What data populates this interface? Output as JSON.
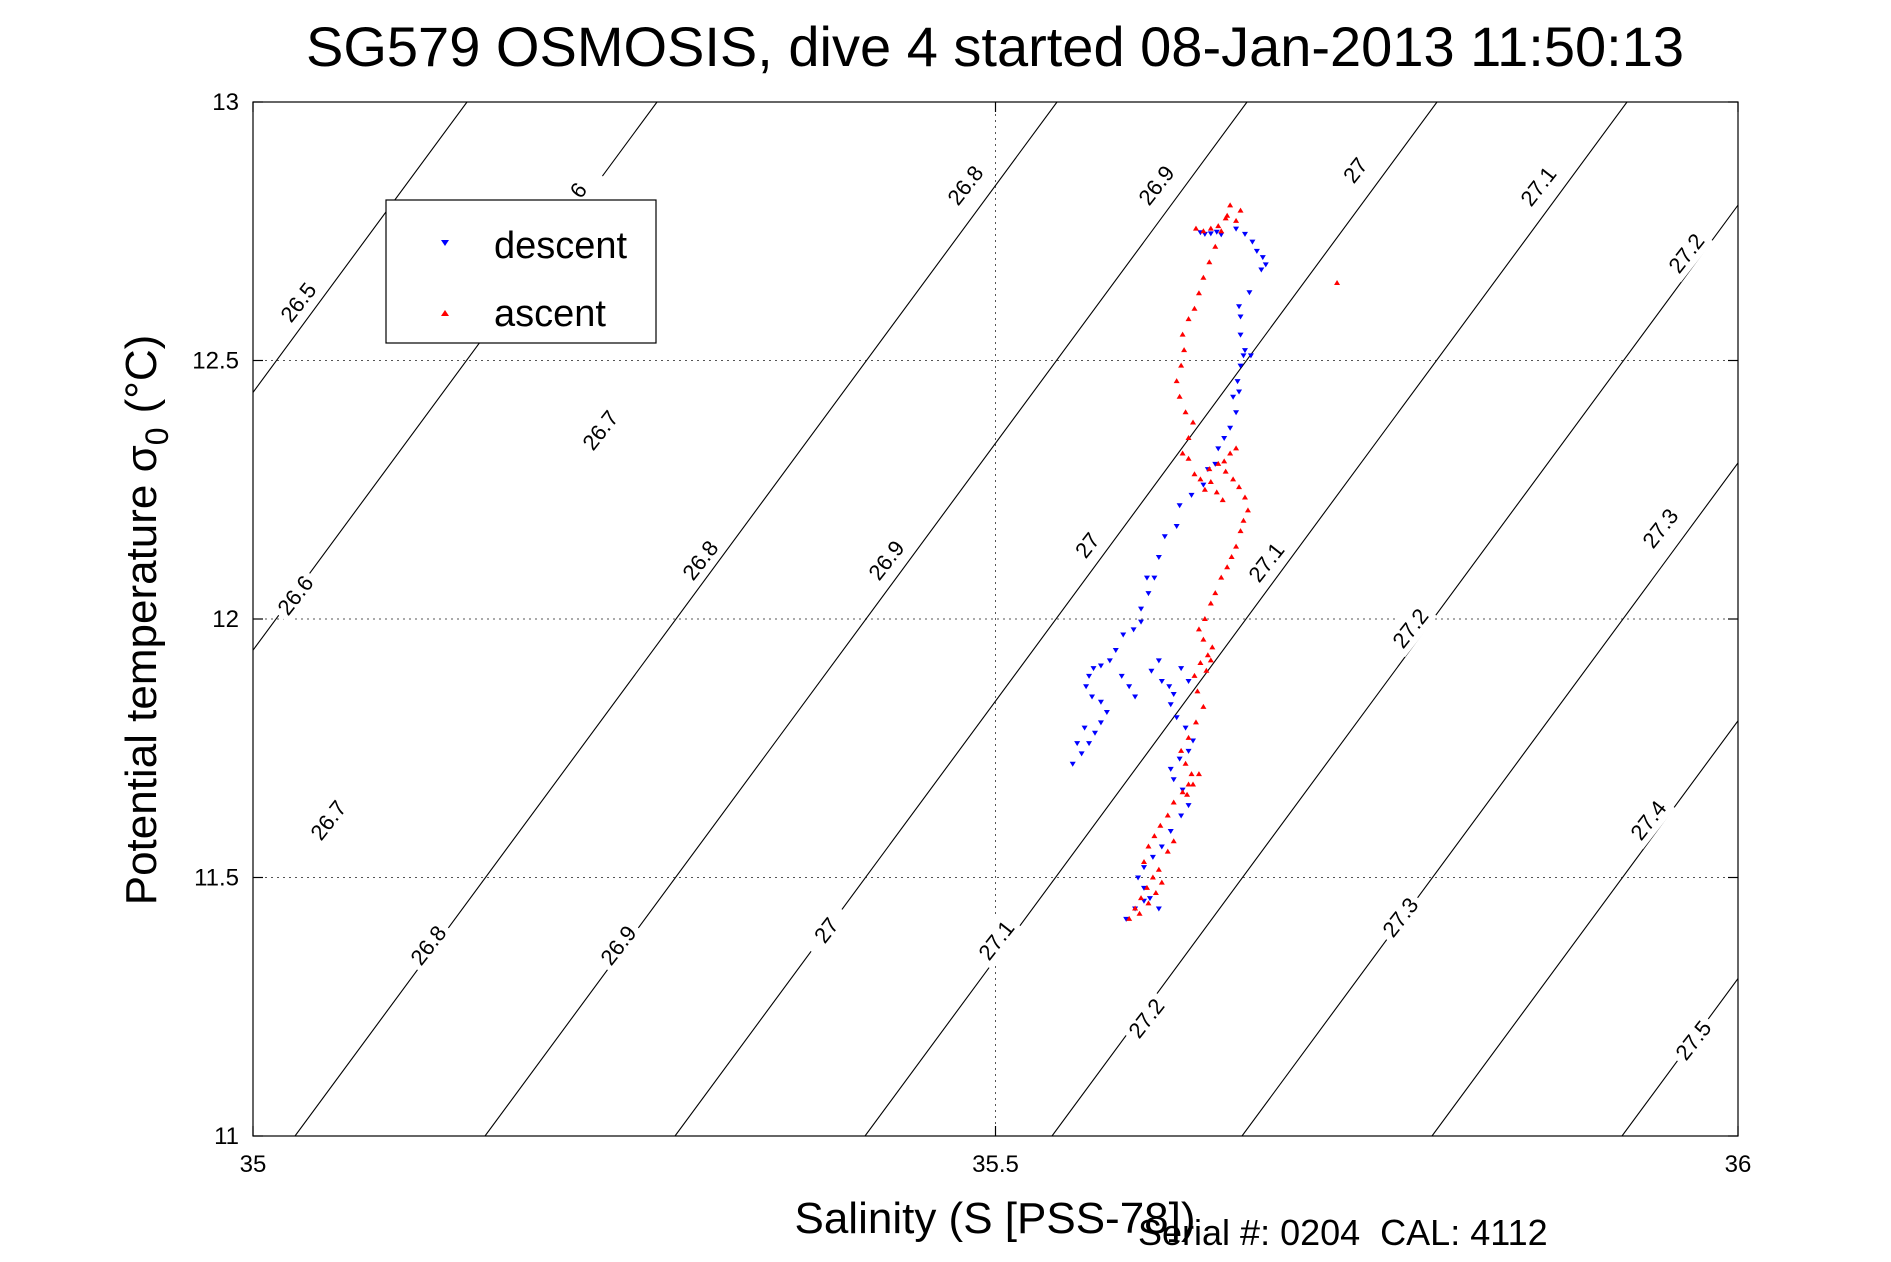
{
  "chart_data": {
    "type": "scatter",
    "title": "SG579 OSMOSIS, dive 4 started 08-Jan-2013 11:50:13",
    "xlabel": "Salinity (S [PSS-78])",
    "ylabel_main": "Potential temperature σ",
    "ylabel_sub": "0",
    "ylabel_unit": "(°C)",
    "xlim": [
      35,
      36
    ],
    "ylim": [
      11,
      13
    ],
    "xticks": [
      35,
      35.5,
      36
    ],
    "xtick_labels": [
      "35",
      "35.5",
      "36"
    ],
    "yticks": [
      11,
      11.5,
      12,
      12.5,
      13
    ],
    "ytick_labels": [
      "11",
      "11.5",
      "12",
      "12.5",
      "13"
    ],
    "grid": true,
    "legend_position": "top-left",
    "isopycnals": {
      "color": "#000000",
      "label_values": [
        "26.5",
        "26.6",
        "26.7",
        "26.8",
        "26.9",
        "27",
        "27.1",
        "27.2",
        "27.3",
        "27.4",
        "27.5",
        "6"
      ]
    },
    "series": [
      {
        "name": "descent",
        "color": "#0000ff",
        "marker": "triangle-down",
        "points": [
          [
            35.638,
            12.748
          ],
          [
            35.641,
            12.745
          ],
          [
            35.645,
            12.746
          ],
          [
            35.649,
            12.749
          ],
          [
            35.652,
            12.744
          ],
          [
            35.662,
            12.755
          ],
          [
            35.668,
            12.745
          ],
          [
            35.673,
            12.73
          ],
          [
            35.676,
            12.712
          ],
          [
            35.68,
            12.7
          ],
          [
            35.682,
            12.686
          ],
          [
            35.679,
            12.676
          ],
          [
            35.671,
            12.632
          ],
          [
            35.664,
            12.605
          ],
          [
            35.665,
            12.585
          ],
          [
            35.665,
            12.55
          ],
          [
            35.668,
            12.52
          ],
          [
            35.672,
            12.51
          ],
          [
            35.667,
            12.51
          ],
          [
            35.665,
            12.49
          ],
          [
            35.663,
            12.46
          ],
          [
            35.664,
            12.44
          ],
          [
            35.66,
            12.43
          ],
          [
            35.662,
            12.4
          ],
          [
            35.658,
            12.37
          ],
          [
            35.654,
            12.35
          ],
          [
            35.65,
            12.33
          ],
          [
            35.648,
            12.3
          ],
          [
            35.643,
            12.29
          ],
          [
            35.64,
            12.26
          ],
          [
            35.632,
            12.24
          ],
          [
            35.624,
            12.22
          ],
          [
            35.622,
            12.18
          ],
          [
            35.614,
            12.16
          ],
          [
            35.61,
            12.12
          ],
          [
            35.607,
            12.08
          ],
          [
            35.603,
            12.05
          ],
          [
            35.598,
            12.02
          ],
          [
            35.593,
            11.98
          ],
          [
            35.586,
            11.97
          ],
          [
            35.581,
            11.94
          ],
          [
            35.577,
            11.92
          ],
          [
            35.571,
            11.91
          ],
          [
            35.566,
            11.905
          ],
          [
            35.563,
            11.89
          ],
          [
            35.561,
            11.87
          ],
          [
            35.565,
            11.85
          ],
          [
            35.571,
            11.84
          ],
          [
            35.575,
            11.82
          ],
          [
            35.571,
            11.8
          ],
          [
            35.567,
            11.78
          ],
          [
            35.563,
            11.76
          ],
          [
            35.558,
            11.74
          ],
          [
            35.552,
            11.72
          ],
          [
            35.585,
            11.89
          ],
          [
            35.59,
            11.87
          ],
          [
            35.594,
            11.85
          ],
          [
            35.605,
            11.9
          ],
          [
            35.61,
            11.92
          ],
          [
            35.612,
            11.88
          ],
          [
            35.617,
            11.87
          ],
          [
            35.62,
            11.855
          ],
          [
            35.618,
            11.835
          ],
          [
            35.622,
            11.81
          ],
          [
            35.628,
            11.79
          ],
          [
            35.633,
            11.765
          ],
          [
            35.63,
            11.745
          ],
          [
            35.624,
            11.73
          ],
          [
            35.618,
            11.71
          ],
          [
            35.62,
            11.69
          ],
          [
            35.626,
            11.67
          ],
          [
            35.63,
            11.64
          ],
          [
            35.625,
            11.62
          ],
          [
            35.618,
            11.59
          ],
          [
            35.612,
            11.56
          ],
          [
            35.606,
            11.54
          ],
          [
            35.6,
            11.52
          ],
          [
            35.596,
            11.5
          ],
          [
            35.6,
            11.48
          ],
          [
            35.604,
            11.46
          ],
          [
            35.61,
            11.44
          ],
          [
            35.6,
            11.455
          ],
          [
            35.594,
            11.44
          ],
          [
            35.588,
            11.42
          ],
          [
            35.625,
            11.905
          ],
          [
            35.63,
            11.88
          ],
          [
            35.598,
            11.995
          ],
          [
            35.602,
            12.08
          ],
          [
            35.56,
            11.79
          ],
          [
            35.555,
            11.76
          ]
        ]
      },
      {
        "name": "ascent",
        "color": "#ff0000",
        "marker": "triangle-up",
        "points": [
          [
            35.59,
            11.42
          ],
          [
            35.594,
            11.44
          ],
          [
            35.598,
            11.46
          ],
          [
            35.602,
            11.48
          ],
          [
            35.606,
            11.5
          ],
          [
            35.61,
            11.515
          ],
          [
            35.612,
            11.49
          ],
          [
            35.608,
            11.47
          ],
          [
            35.603,
            11.45
          ],
          [
            35.597,
            11.43
          ],
          [
            35.6,
            11.53
          ],
          [
            35.603,
            11.56
          ],
          [
            35.607,
            11.58
          ],
          [
            35.611,
            11.6
          ],
          [
            35.616,
            11.62
          ],
          [
            35.62,
            11.645
          ],
          [
            35.626,
            11.665
          ],
          [
            35.63,
            11.68
          ],
          [
            35.632,
            11.7
          ],
          [
            35.628,
            11.72
          ],
          [
            35.625,
            11.745
          ],
          [
            35.63,
            11.77
          ],
          [
            35.635,
            11.8
          ],
          [
            35.64,
            11.83
          ],
          [
            35.636,
            11.86
          ],
          [
            35.634,
            11.89
          ],
          [
            35.638,
            11.915
          ],
          [
            35.643,
            11.93
          ],
          [
            35.646,
            11.945
          ],
          [
            35.64,
            11.96
          ],
          [
            35.637,
            11.98
          ],
          [
            35.641,
            12.0
          ],
          [
            35.645,
            12.03
          ],
          [
            35.648,
            12.05
          ],
          [
            35.652,
            12.08
          ],
          [
            35.656,
            12.1
          ],
          [
            35.659,
            12.12
          ],
          [
            35.662,
            12.14
          ],
          [
            35.665,
            12.17
          ],
          [
            35.667,
            12.19
          ],
          [
            35.67,
            12.21
          ],
          [
            35.668,
            12.235
          ],
          [
            35.664,
            12.255
          ],
          [
            35.66,
            12.27
          ],
          [
            35.655,
            12.285
          ],
          [
            35.65,
            12.3
          ],
          [
            35.644,
            12.29
          ],
          [
            35.638,
            12.27
          ],
          [
            35.634,
            12.28
          ],
          [
            35.63,
            12.31
          ],
          [
            35.626,
            12.32
          ],
          [
            35.63,
            12.35
          ],
          [
            35.633,
            12.38
          ],
          [
            35.628,
            12.4
          ],
          [
            35.624,
            12.43
          ],
          [
            35.622,
            12.46
          ],
          [
            35.625,
            12.49
          ],
          [
            35.627,
            12.52
          ],
          [
            35.626,
            12.55
          ],
          [
            35.63,
            12.58
          ],
          [
            35.634,
            12.6
          ],
          [
            35.637,
            12.63
          ],
          [
            35.64,
            12.66
          ],
          [
            35.644,
            12.69
          ],
          [
            35.648,
            12.72
          ],
          [
            35.652,
            12.75
          ],
          [
            35.656,
            12.78
          ],
          [
            35.658,
            12.8
          ],
          [
            35.655,
            12.775
          ],
          [
            35.65,
            12.76
          ],
          [
            35.645,
            12.755
          ],
          [
            35.64,
            12.75
          ],
          [
            35.635,
            12.755
          ],
          [
            35.662,
            12.77
          ],
          [
            35.665,
            12.79
          ],
          [
            35.73,
            12.65
          ],
          [
            35.654,
            12.305
          ],
          [
            35.658,
            12.32
          ],
          [
            35.662,
            12.33
          ],
          [
            35.641,
            12.25
          ],
          [
            35.645,
            12.265
          ],
          [
            35.649,
            12.245
          ],
          [
            35.653,
            12.23
          ],
          [
            35.642,
            11.9
          ],
          [
            35.645,
            11.92
          ],
          [
            35.637,
            11.7
          ],
          [
            35.633,
            11.68
          ],
          [
            35.629,
            11.66
          ],
          [
            35.62,
            11.57
          ],
          [
            35.616,
            11.55
          ]
        ]
      }
    ]
  },
  "footer": {
    "serial_text": "Serial #: 0204  CAL: 4112"
  }
}
